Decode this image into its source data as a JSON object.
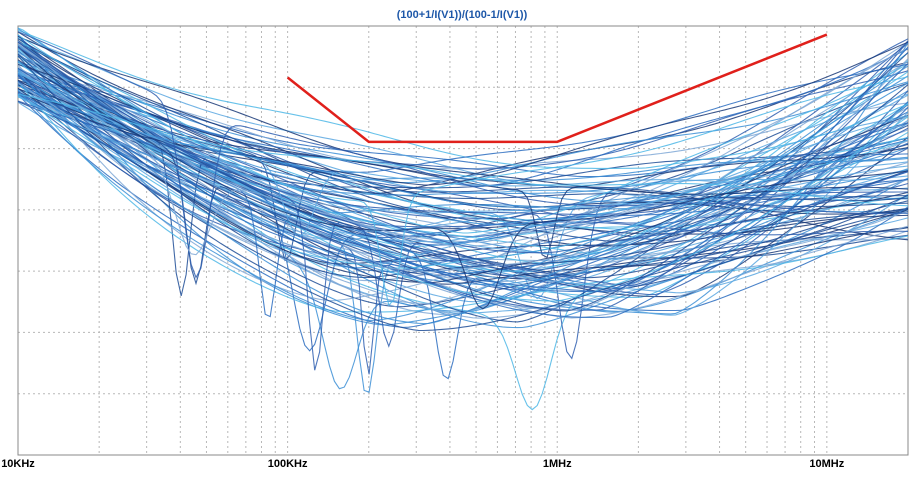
{
  "chart_data": {
    "type": "line",
    "title": "(100+1/I(V1))/(100-1/I(V1))",
    "x_scale": "log",
    "xlim": [
      "10KHz",
      "20MHz"
    ],
    "x_ticks": [
      "10KHz",
      "100KHz",
      "1MHz",
      "10MHz"
    ],
    "grid": "on (dotted major and minor grid)",
    "y_tick_labels": [],
    "series_count": 120,
    "series_colors": [
      "#1f4e96",
      "#2a6cc0",
      "#3c8fd6",
      "#5aa7e0",
      "#1a3a78",
      "#4db7e6",
      "#7fa8d6",
      "#2f5fb0"
    ],
    "limit_line": {
      "color": "#e0201b",
      "points": [
        {
          "x": "100KHz",
          "level": 0.88
        },
        {
          "x": "200KHz",
          "level": 0.73
        },
        {
          "x": "1MHz",
          "level": 0.73
        },
        {
          "x": "10MHz",
          "level": 0.98
        }
      ]
    },
    "trace_band": {
      "description": "Many swept curves: high at 10KHz, falling to a broad minimum around 200KHz–1MHz, rising again toward 20MHz; several sharp resonant notches between 30KHz and 700KHz"
    }
  }
}
